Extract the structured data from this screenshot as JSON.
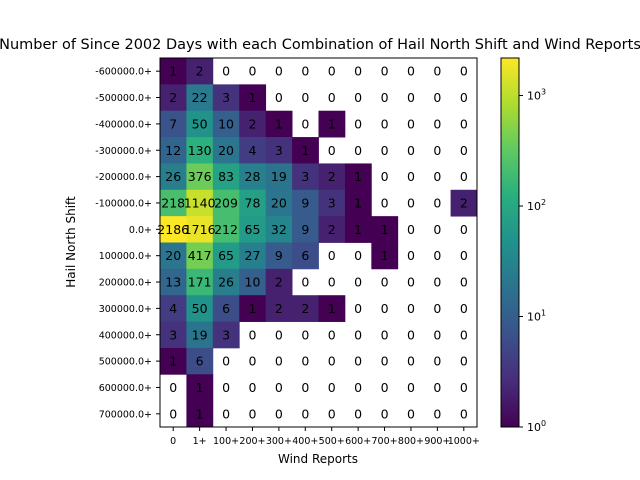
{
  "chart_data": {
    "type": "heatmap",
    "title": "Number of Since 2002 Days with each Combination of Hail North Shift and Wind Reports",
    "xlabel": "Wind Reports",
    "ylabel": "Hail North Shift",
    "x_categories": [
      "0",
      "1+",
      "100+",
      "200+",
      "300+",
      "400+",
      "500+",
      "600+",
      "700+",
      "800+",
      "900+",
      "1000+"
    ],
    "y_categories": [
      "-600000.0+",
      "-500000.0+",
      "-400000.0+",
      "-300000.0+",
      "-200000.0+",
      "-100000.0+",
      "0.0+",
      "100000.0+",
      "200000.0+",
      "300000.0+",
      "400000.0+",
      "500000.0+",
      "600000.0+",
      "700000.0+"
    ],
    "values": [
      [
        1,
        2,
        0,
        0,
        0,
        0,
        0,
        0,
        0,
        0,
        0,
        0
      ],
      [
        2,
        22,
        3,
        1,
        0,
        0,
        0,
        0,
        0,
        0,
        0,
        0
      ],
      [
        7,
        50,
        10,
        2,
        1,
        0,
        1,
        0,
        0,
        0,
        0,
        0
      ],
      [
        12,
        130,
        20,
        4,
        3,
        1,
        0,
        0,
        0,
        0,
        0,
        0
      ],
      [
        26,
        376,
        83,
        28,
        19,
        3,
        2,
        1,
        0,
        0,
        0,
        0
      ],
      [
        218,
        1140,
        209,
        78,
        20,
        9,
        3,
        1,
        0,
        0,
        0,
        2
      ],
      [
        2186,
        1716,
        212,
        65,
        32,
        9,
        2,
        1,
        1,
        0,
        0,
        0
      ],
      [
        20,
        417,
        65,
        27,
        9,
        6,
        0,
        0,
        1,
        0,
        0,
        0
      ],
      [
        13,
        171,
        26,
        10,
        2,
        0,
        0,
        0,
        0,
        0,
        0,
        0
      ],
      [
        4,
        50,
        6,
        1,
        2,
        2,
        1,
        0,
        0,
        0,
        0,
        0
      ],
      [
        3,
        19,
        3,
        0,
        0,
        0,
        0,
        0,
        0,
        0,
        0,
        0
      ],
      [
        1,
        6,
        0,
        0,
        0,
        0,
        0,
        0,
        0,
        0,
        0,
        0
      ],
      [
        0,
        1,
        0,
        0,
        0,
        0,
        0,
        0,
        0,
        0,
        0,
        0
      ],
      [
        0,
        1,
        0,
        0,
        0,
        0,
        0,
        0,
        0,
        0,
        0,
        0
      ]
    ],
    "colorbar": {
      "scale": "log",
      "range": [
        1,
        2186
      ],
      "colormap": "viridis",
      "ticks": [
        {
          "base": "10",
          "exp": "0",
          "value": 1
        },
        {
          "base": "10",
          "exp": "1",
          "value": 10
        },
        {
          "base": "10",
          "exp": "2",
          "value": 100
        },
        {
          "base": "10",
          "exp": "3",
          "value": 1000
        }
      ]
    },
    "grid": false
  }
}
